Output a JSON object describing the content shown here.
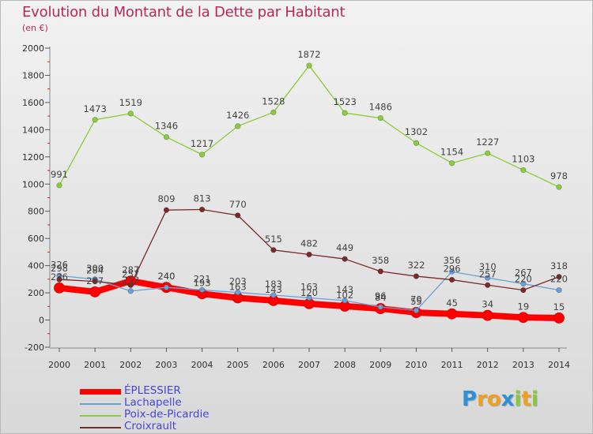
{
  "title": "Evolution du Montant de la Dette par Habitant",
  "subtitle": "(en €)",
  "brand": {
    "text": "Proxiti",
    "letters": [
      "P",
      "r",
      "o",
      "x",
      "i",
      "t",
      "i"
    ],
    "colors": [
      "#2f8fd8",
      "#f0a020",
      "#f0a020",
      "#2f8fd8",
      "#8cc63f",
      "#f0a020",
      "#8cc63f"
    ]
  },
  "chart_data": {
    "type": "line",
    "categories": [
      "2000",
      "2001",
      "2002",
      "2003",
      "2004",
      "2005",
      "2006",
      "2007",
      "2008",
      "2009",
      "2010",
      "2011",
      "2012",
      "2013",
      "2014"
    ],
    "ylim": [
      -200,
      2000
    ],
    "yticks": [
      -200,
      0,
      200,
      400,
      600,
      800,
      1000,
      1200,
      1400,
      1600,
      1800,
      2000
    ],
    "grid": false,
    "legend_position": "bottom-left",
    "series": [
      {
        "name": "ÉPLESSIER",
        "color": "#ff0000",
        "values": [
          236,
          207,
          287,
          240,
          193,
          163,
          143,
          120,
          102,
          84,
          55,
          45,
          34,
          19,
          15
        ]
      },
      {
        "name": "Lachapelle",
        "color": "#6a9fd8",
        "values": [
          326,
          300,
          213,
          240,
          221,
          203,
          183,
          163,
          143,
          96,
          70,
          356,
          310,
          267,
          220
        ]
      },
      {
        "name": "Poix-de-Picardie",
        "color": "#8ccc3c",
        "values": [
          991,
          1473,
          1519,
          1346,
          1217,
          1426,
          1528,
          1872,
          1523,
          1486,
          1302,
          1154,
          1227,
          1103,
          978
        ]
      },
      {
        "name": "Croixrault",
        "color": "#7a2a2a",
        "values": [
          298,
          284,
          257,
          809,
          813,
          770,
          515,
          482,
          449,
          358,
          322,
          296,
          257,
          220,
          318
        ]
      }
    ]
  }
}
